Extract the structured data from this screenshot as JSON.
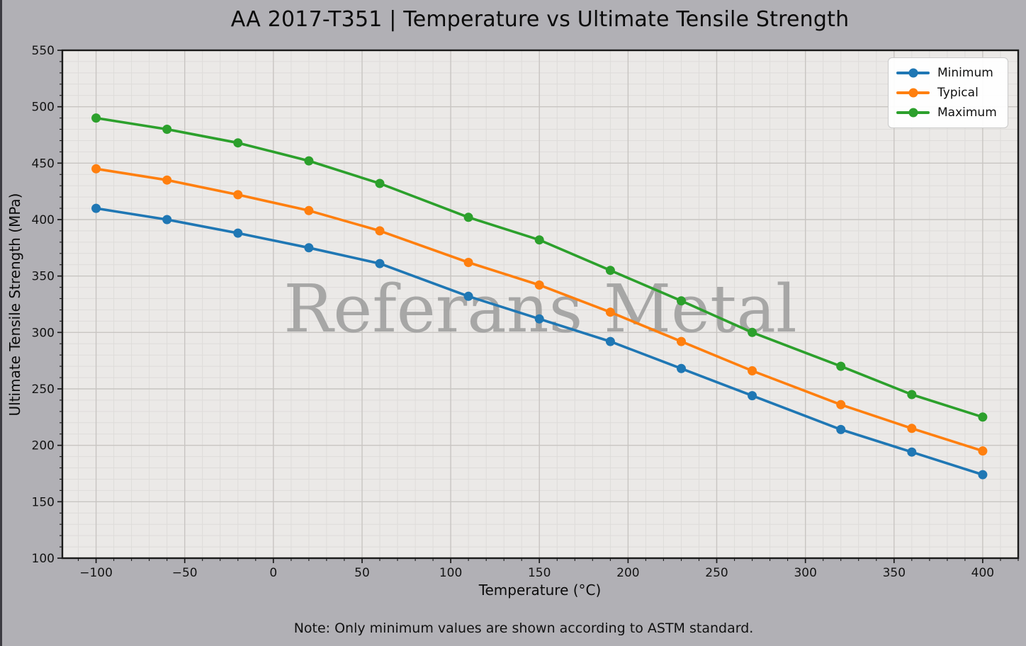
{
  "figure": {
    "title": "AA 2017-T351 | Temperature vs Ultimate Tensile Strength",
    "note": "Note: Only minimum values are shown according to ASTM standard.",
    "watermark": "Referans Metal"
  },
  "chart_data": {
    "type": "line",
    "title": "AA 2017-T351 | Temperature vs Ultimate Tensile Strength",
    "xlabel": "Temperature (°C)",
    "ylabel": "Ultimate Tensile Strength (MPa)",
    "x": [
      -100,
      -60,
      -20,
      20,
      60,
      110,
      150,
      190,
      230,
      270,
      320,
      360,
      400
    ],
    "series": [
      {
        "name": "Minimum",
        "color": "#1f77b4",
        "marker": "circle",
        "values": [
          410,
          400,
          388,
          375,
          361,
          332,
          312,
          292,
          268,
          244,
          214,
          194,
          174
        ]
      },
      {
        "name": "Typical",
        "color": "#ff7f0e",
        "marker": "circle",
        "values": [
          445,
          435,
          422,
          408,
          390,
          362,
          342,
          318,
          292,
          266,
          236,
          215,
          195
        ]
      },
      {
        "name": "Maximum",
        "color": "#2ca02c",
        "marker": "circle",
        "values": [
          490,
          480,
          468,
          452,
          432,
          402,
          382,
          355,
          328,
          300,
          270,
          245,
          225
        ]
      }
    ],
    "xlim": [
      -119,
      420
    ],
    "ylim": [
      100,
      550
    ],
    "x_ticks": [
      -100,
      -50,
      0,
      50,
      100,
      150,
      200,
      250,
      300,
      350,
      400
    ],
    "y_ticks": [
      100,
      150,
      200,
      250,
      300,
      350,
      400,
      450,
      500,
      550
    ],
    "minor_tick_step_x": 10,
    "minor_tick_step_y": 10,
    "grid": "major+minor",
    "legend": {
      "position": "upper right",
      "entries": [
        "Minimum",
        "Typical",
        "Maximum"
      ]
    },
    "colors": {
      "figure_bg": "#b1b0b5",
      "axes_bg": "#ebe9e7",
      "grid_major": "#c8c5c2",
      "grid_minor": "#dedcda",
      "spine": "#1a1a1a",
      "tick_label": "#141414",
      "watermark": "#979797",
      "legend_bg": "#ffffff",
      "legend_border": "#c9c9c9"
    }
  }
}
